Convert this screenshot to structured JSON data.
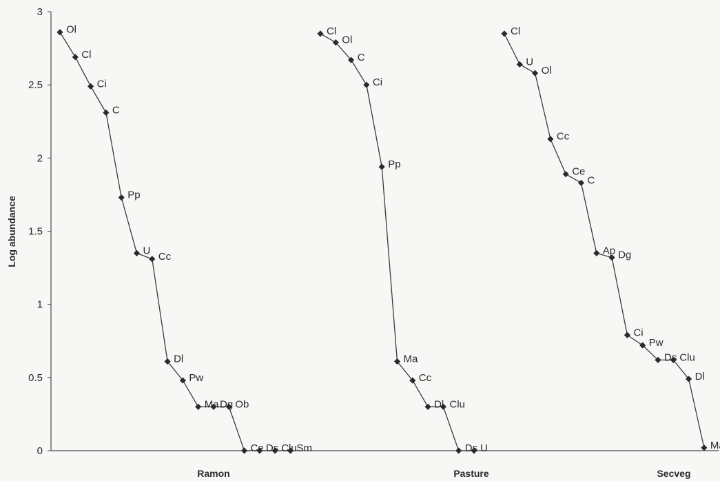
{
  "chart_data": {
    "type": "line",
    "title": "",
    "ylabel": "Log abundance",
    "ylim": [
      0,
      3
    ],
    "yticks": [
      "0",
      "0.5",
      "1",
      "1.5",
      "2",
      "2.5",
      "3"
    ],
    "grid": false,
    "series": [
      {
        "name": "Ramon",
        "points": [
          {
            "label": "Ol",
            "y": 2.86
          },
          {
            "label": "Cl",
            "y": 2.69
          },
          {
            "label": "Ci",
            "y": 2.49
          },
          {
            "label": "C",
            "y": 2.31
          },
          {
            "label": "Pp",
            "y": 1.73
          },
          {
            "label": "U",
            "y": 1.35
          },
          {
            "label": "Cc",
            "y": 1.31
          },
          {
            "label": "Dl",
            "y": 0.61
          },
          {
            "label": "Pw",
            "y": 0.48
          },
          {
            "label": "Ma",
            "y": 0.3
          },
          {
            "label": "Dg",
            "y": 0.3
          },
          {
            "label": "Ob",
            "y": 0.3
          },
          {
            "label": "Ce",
            "y": 0.0
          },
          {
            "label": "Ds",
            "y": 0.0
          },
          {
            "label": "Clu",
            "y": 0.0
          },
          {
            "label": "Sm",
            "y": 0.0
          }
        ]
      },
      {
        "name": "Pasture",
        "points": [
          {
            "label": "Cl",
            "y": 2.85
          },
          {
            "label": "Ol",
            "y": 2.79
          },
          {
            "label": "C",
            "y": 2.67
          },
          {
            "label": "Ci",
            "y": 2.5
          },
          {
            "label": "Pp",
            "y": 1.94
          },
          {
            "label": "Ma",
            "y": 0.61
          },
          {
            "label": "Cc",
            "y": 0.48
          },
          {
            "label": "Dl",
            "y": 0.3
          },
          {
            "label": "Clu",
            "y": 0.3
          },
          {
            "label": "Ds",
            "y": 0.0
          },
          {
            "label": "U",
            "y": 0.0
          }
        ]
      },
      {
        "name": "Secveg",
        "points": [
          {
            "label": "Cl",
            "y": 2.85
          },
          {
            "label": "U",
            "y": 2.64
          },
          {
            "label": "Ol",
            "y": 2.58
          },
          {
            "label": "Cc",
            "y": 2.13
          },
          {
            "label": "Ce",
            "y": 1.89
          },
          {
            "label": "C",
            "y": 1.83
          },
          {
            "label": "Ap",
            "y": 1.35
          },
          {
            "label": "Dg",
            "y": 1.32
          },
          {
            "label": "Ci",
            "y": 0.79
          },
          {
            "label": "Pw",
            "y": 0.72
          },
          {
            "label": "Ds",
            "y": 0.62
          },
          {
            "label": "Clu",
            "y": 0.62
          },
          {
            "label": "Dl",
            "y": 0.49
          },
          {
            "label": "Ma",
            "y": 0.02
          }
        ]
      }
    ]
  }
}
